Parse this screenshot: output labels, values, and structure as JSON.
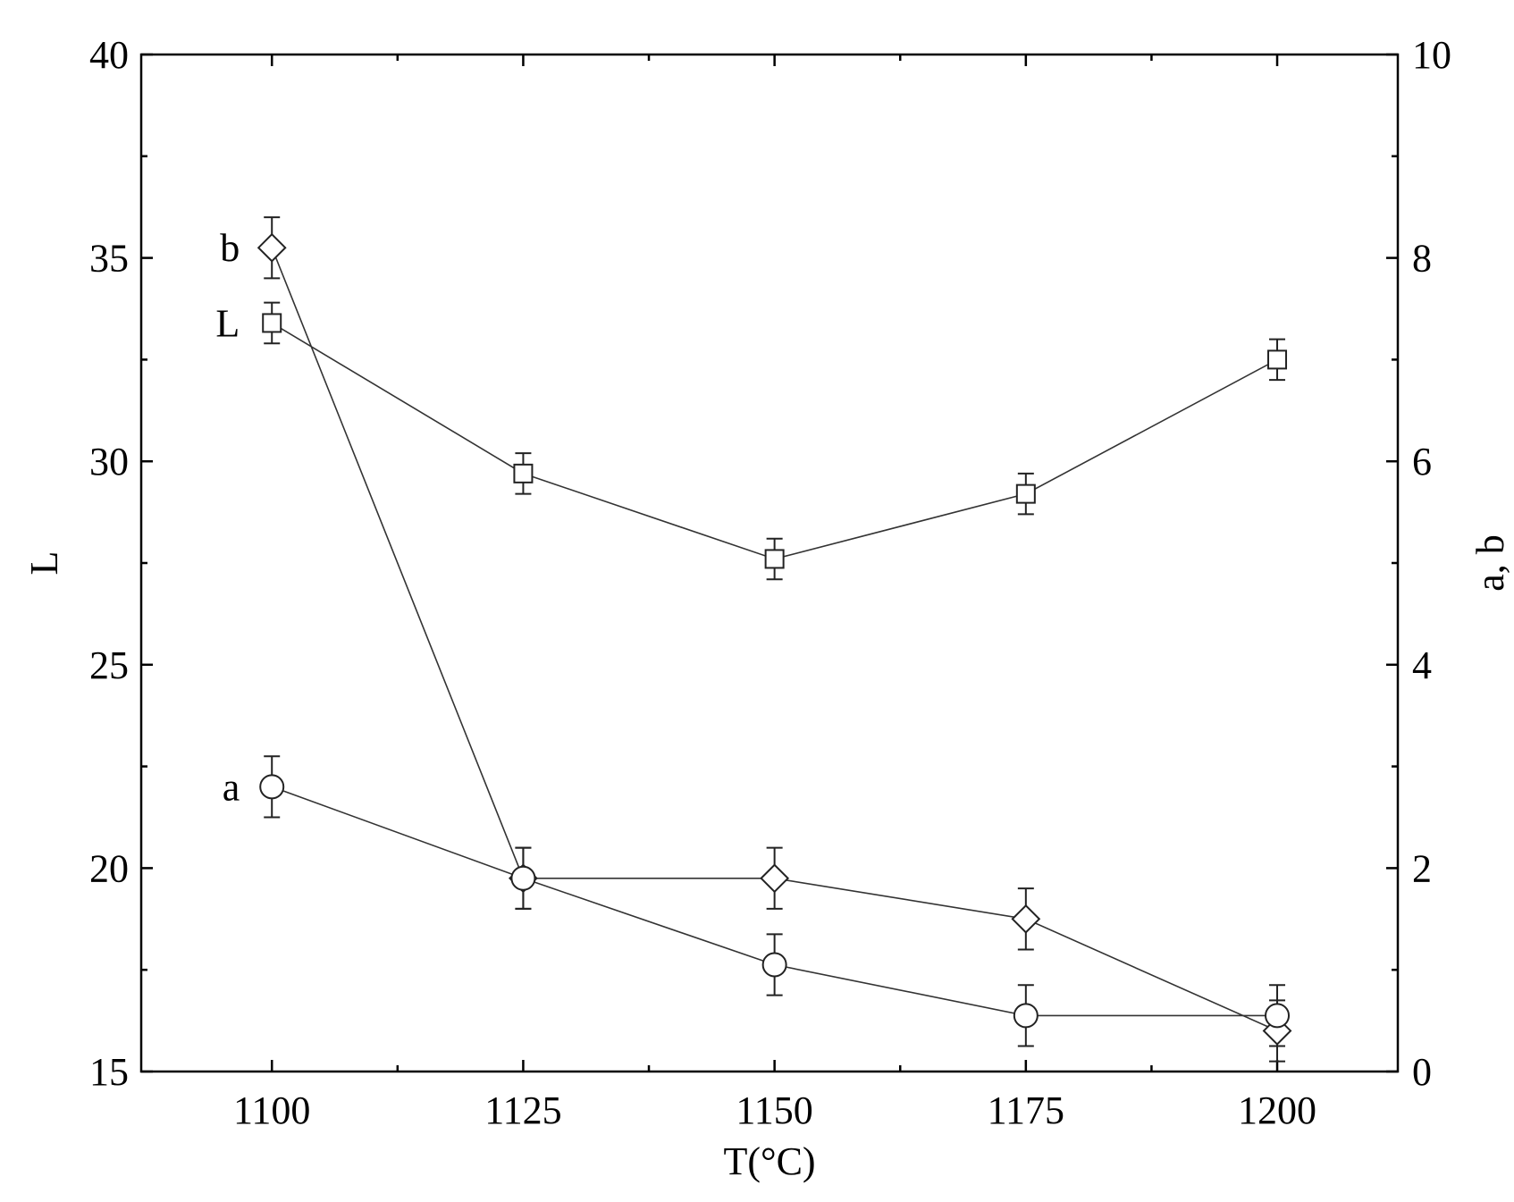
{
  "chart_data": {
    "type": "scatter",
    "xlabel": "T(°C)",
    "ylabel_left": "L",
    "ylabel_right": "a, b",
    "xlim": [
      1087,
      1212
    ],
    "ylim_left": [
      15,
      40
    ],
    "ylim_right": [
      0,
      10
    ],
    "x_ticks": [
      1100,
      1125,
      1150,
      1175,
      1200
    ],
    "x_minor_ticks": [
      1112.5,
      1137.5,
      1162.5,
      1187.5
    ],
    "y_left_ticks": [
      15,
      20,
      25,
      30,
      35,
      40
    ],
    "y_right_ticks": [
      0,
      2,
      4,
      6,
      8,
      10
    ],
    "grid": false,
    "series": [
      {
        "name": "L",
        "axis": "left",
        "marker": "square",
        "x": [
          1100,
          1125,
          1150,
          1175,
          1200
        ],
        "y": [
          33.4,
          29.7,
          27.6,
          29.2,
          32.5
        ],
        "err": [
          0.5,
          0.5,
          0.5,
          0.5,
          0.5
        ]
      },
      {
        "name": "b",
        "axis": "right",
        "marker": "diamond",
        "x": [
          1100,
          1125,
          1150,
          1175,
          1200
        ],
        "y": [
          8.1,
          1.9,
          1.9,
          1.5,
          0.4
        ],
        "err": [
          0.3,
          0.3,
          0.3,
          0.3,
          0.3
        ]
      },
      {
        "name": "a",
        "axis": "right",
        "marker": "circle",
        "x": [
          1100,
          1125,
          1150,
          1175,
          1200
        ],
        "y": [
          2.8,
          1.9,
          1.05,
          0.55,
          0.55
        ],
        "err": [
          0.3,
          0.3,
          0.3,
          0.3,
          0.3
        ]
      }
    ]
  }
}
